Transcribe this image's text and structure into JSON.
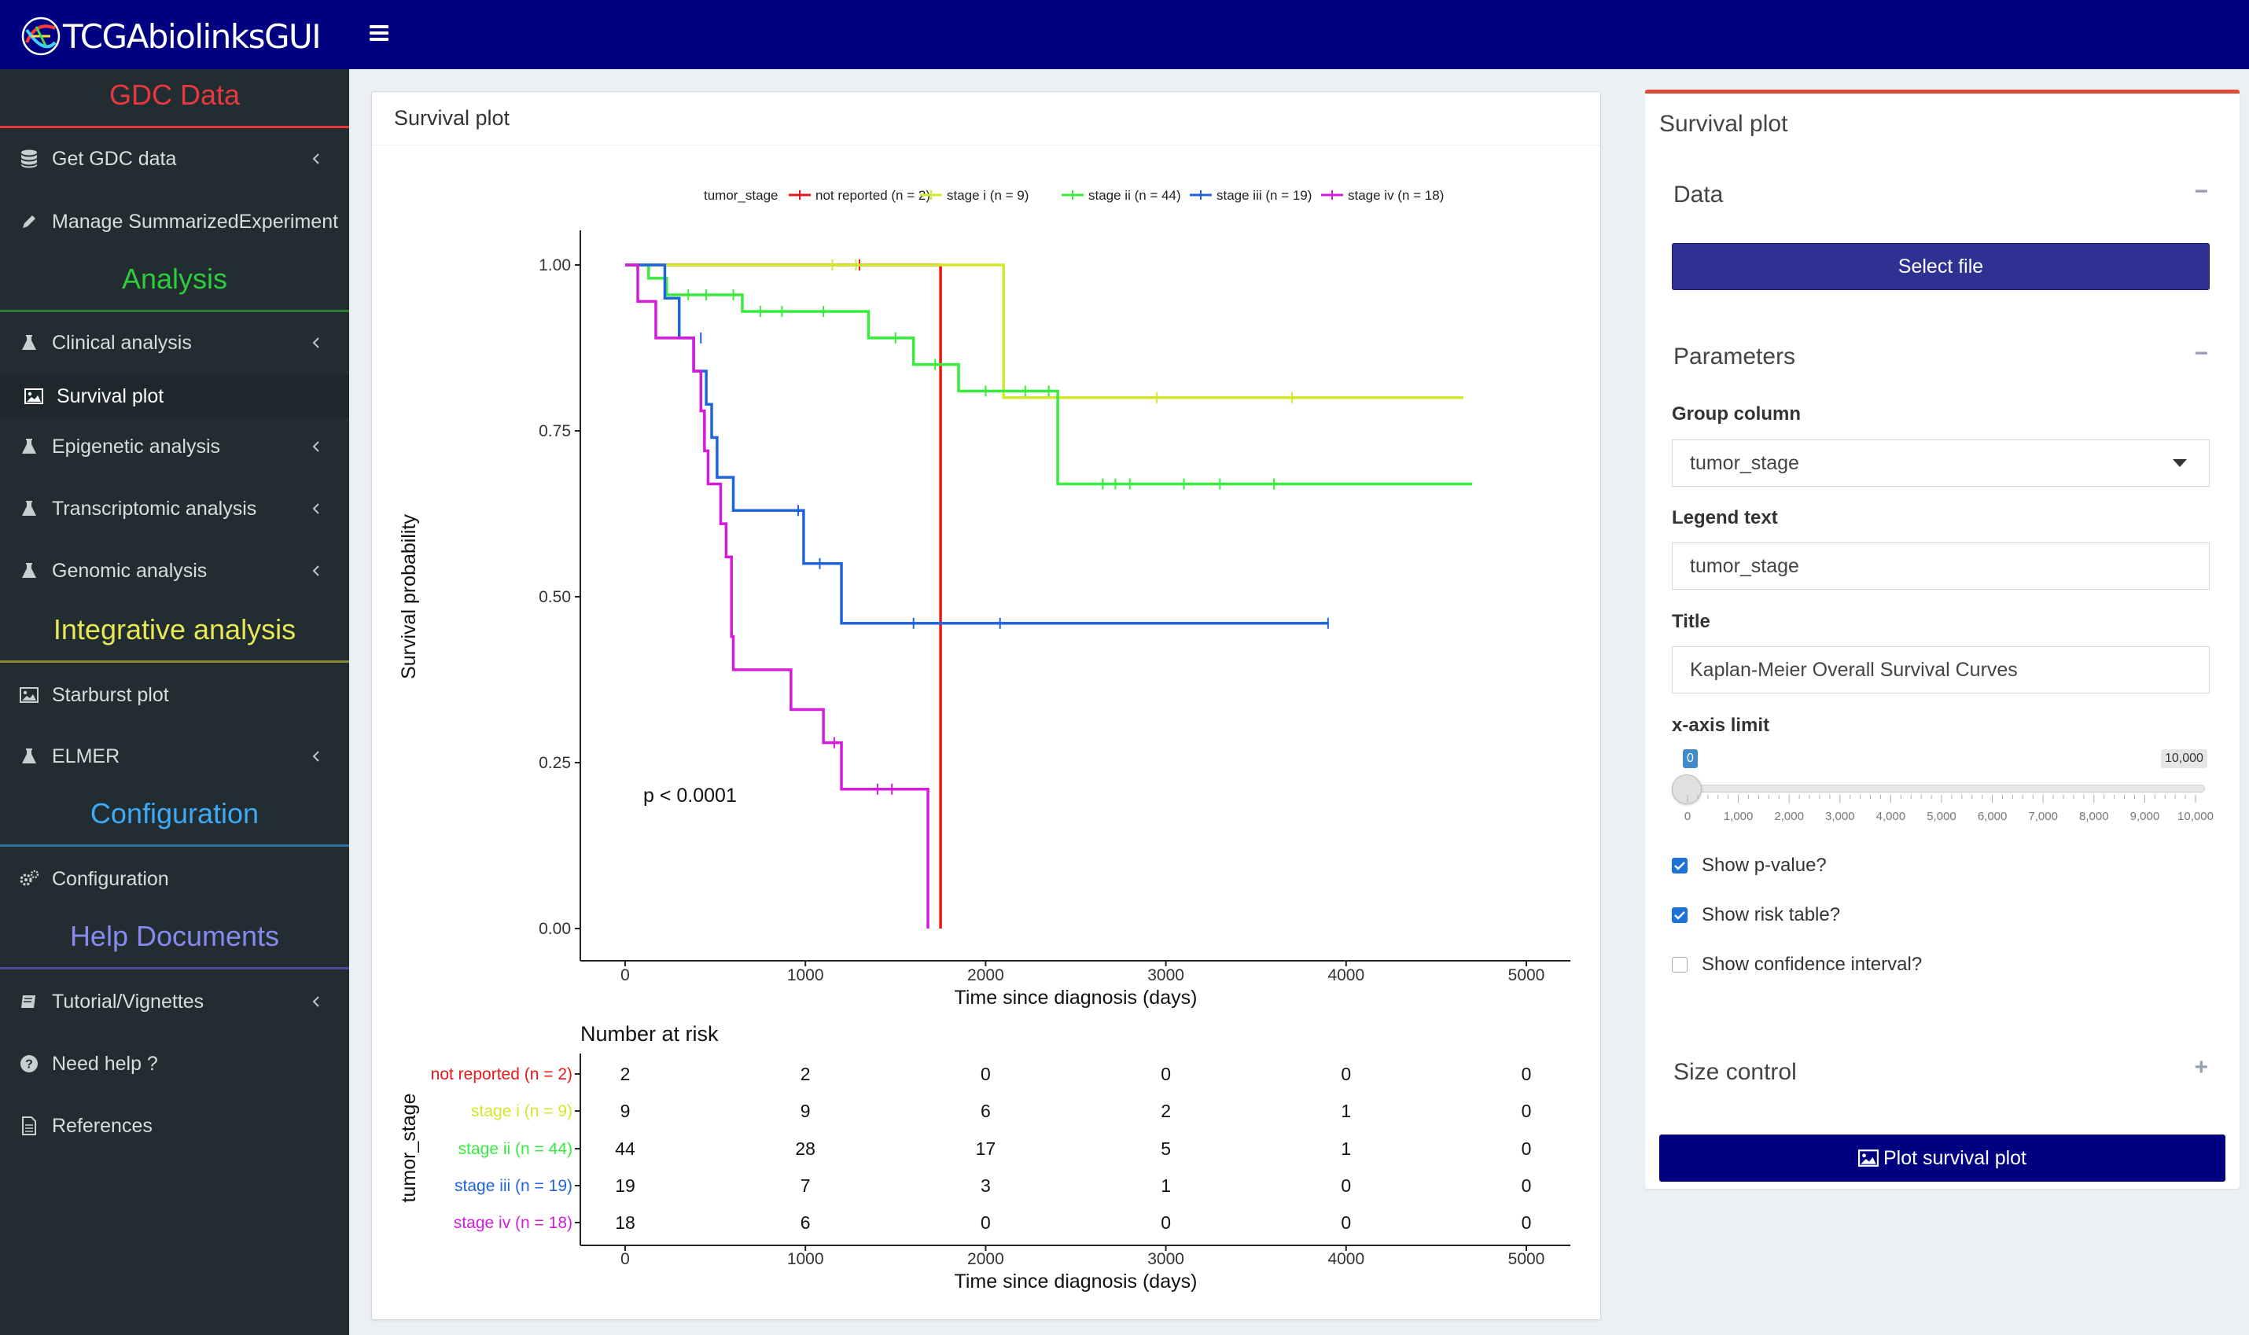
{
  "app": {
    "title": "TCGAbiolinksGUI"
  },
  "sidebar": {
    "sections": [
      {
        "title": "GDC Data",
        "color": "#e8383d"
      },
      {
        "title": "Analysis",
        "color": "#2fcc3a"
      },
      {
        "title": "Integrative analysis",
        "color": "#e8e855"
      },
      {
        "title": "Configuration",
        "color": "#3fa9f5"
      },
      {
        "title": "Help Documents",
        "color": "#8888ee"
      }
    ],
    "items": [
      {
        "label": "Get GDC data",
        "icon": "database-icon"
      },
      {
        "label": "Manage SummarizedExperiment",
        "icon": "pencil-icon"
      },
      {
        "label": "Clinical analysis",
        "icon": "flask-icon"
      },
      {
        "label": "Survival plot",
        "icon": "image-icon"
      },
      {
        "label": "Epigenetic analysis",
        "icon": "flask-icon"
      },
      {
        "label": "Transcriptomic analysis",
        "icon": "flask-icon"
      },
      {
        "label": "Genomic analysis",
        "icon": "flask-icon"
      },
      {
        "label": "Starburst plot",
        "icon": "image-icon"
      },
      {
        "label": "ELMER",
        "icon": "flask-icon"
      },
      {
        "label": "Configuration",
        "icon": "gears-icon"
      },
      {
        "label": "Tutorial/Vignettes",
        "icon": "book-icon"
      },
      {
        "label": "Need help ?",
        "icon": "question-circle-icon"
      },
      {
        "label": "References",
        "icon": "file-text-icon"
      }
    ]
  },
  "main": {
    "title": "Survival plot"
  },
  "chart_data": {
    "type": "line",
    "subtype": "kaplan-meier",
    "legend": {
      "title": "tumor_stage",
      "position": "top"
    },
    "xlabel": "Time since diagnosis (days)",
    "ylabel": "Survival probability",
    "xlim": [
      0,
      5000
    ],
    "ylim": [
      0,
      1
    ],
    "x_ticks": [
      0,
      1000,
      2000,
      3000,
      4000,
      5000
    ],
    "y_ticks": [
      "0.00",
      "0.25",
      "0.50",
      "0.75",
      "1.00"
    ],
    "pvalue_text": "p < 0.0001",
    "series": [
      {
        "name": "not reported (n = 2)",
        "color": "#e61919",
        "steps": [
          [
            0,
            1.0
          ],
          [
            1750,
            0.0
          ]
        ],
        "censors": [
          [
            1300,
            1.0
          ]
        ]
      },
      {
        "name": "stage i (n = 9)",
        "color": "#d3e82b",
        "steps": [
          [
            0,
            1.0
          ],
          [
            2100,
            0.8
          ],
          [
            4650,
            0.8
          ]
        ],
        "censors": [
          [
            1150,
            1.0
          ],
          [
            1280,
            1.0
          ],
          [
            2950,
            0.8
          ],
          [
            3700,
            0.8
          ]
        ]
      },
      {
        "name": "stage ii (n = 44)",
        "color": "#38ec3d",
        "steps": [
          [
            0,
            1.0
          ],
          [
            130,
            0.98
          ],
          [
            230,
            0.955
          ],
          [
            650,
            0.93
          ],
          [
            1350,
            0.89
          ],
          [
            1600,
            0.85
          ],
          [
            1850,
            0.81
          ],
          [
            2400,
            0.67
          ],
          [
            4700,
            0.67
          ]
        ],
        "censors": [
          [
            350,
            0.955
          ],
          [
            450,
            0.955
          ],
          [
            600,
            0.955
          ],
          [
            750,
            0.93
          ],
          [
            870,
            0.93
          ],
          [
            1100,
            0.93
          ],
          [
            1500,
            0.89
          ],
          [
            1720,
            0.85
          ],
          [
            2000,
            0.81
          ],
          [
            2220,
            0.81
          ],
          [
            2350,
            0.81
          ],
          [
            2650,
            0.67
          ],
          [
            2720,
            0.67
          ],
          [
            2800,
            0.67
          ],
          [
            3100,
            0.67
          ],
          [
            3300,
            0.67
          ],
          [
            3600,
            0.67
          ]
        ]
      },
      {
        "name": "stage iii (n = 19)",
        "color": "#1f63de",
        "steps": [
          [
            0,
            1.0
          ],
          [
            220,
            0.95
          ],
          [
            300,
            0.89
          ],
          [
            380,
            0.84
          ],
          [
            450,
            0.79
          ],
          [
            480,
            0.74
          ],
          [
            510,
            0.68
          ],
          [
            600,
            0.63
          ],
          [
            990,
            0.55
          ],
          [
            1200,
            0.46
          ],
          [
            3900,
            0.46
          ]
        ],
        "censors": [
          [
            420,
            0.89
          ],
          [
            960,
            0.63
          ],
          [
            1080,
            0.55
          ],
          [
            1600,
            0.46
          ],
          [
            2080,
            0.46
          ],
          [
            3900,
            0.46
          ]
        ]
      },
      {
        "name": "stage iv (n = 18)",
        "color": "#d41bd9",
        "steps": [
          [
            0,
            1.0
          ],
          [
            70,
            0.945
          ],
          [
            170,
            0.89
          ],
          [
            380,
            0.84
          ],
          [
            420,
            0.78
          ],
          [
            440,
            0.72
          ],
          [
            460,
            0.67
          ],
          [
            530,
            0.61
          ],
          [
            560,
            0.56
          ],
          [
            590,
            0.44
          ],
          [
            600,
            0.39
          ],
          [
            920,
            0.33
          ],
          [
            1100,
            0.28
          ],
          [
            1200,
            0.21
          ],
          [
            1680,
            0.0
          ]
        ],
        "censors": [
          [
            1160,
            0.28
          ],
          [
            1400,
            0.21
          ],
          [
            1480,
            0.21
          ]
        ]
      }
    ],
    "risk_table": {
      "title": "Number at risk",
      "ylabel": "tumor_stage",
      "xlabel": "Time since diagnosis (days)",
      "times": [
        0,
        1000,
        2000,
        3000,
        4000,
        5000
      ],
      "rows": [
        {
          "label": "not reported (n = 2)",
          "color": "#e61919",
          "values": [
            2,
            2,
            0,
            0,
            0,
            0
          ]
        },
        {
          "label": "stage i (n = 9)",
          "color": "#d3e82b",
          "values": [
            9,
            9,
            6,
            2,
            1,
            0
          ]
        },
        {
          "label": "stage ii (n = 44)",
          "color": "#38ec3d",
          "values": [
            44,
            28,
            17,
            5,
            1,
            0
          ]
        },
        {
          "label": "stage iii (n = 19)",
          "color": "#1f63de",
          "values": [
            19,
            7,
            3,
            1,
            0,
            0
          ]
        },
        {
          "label": "stage iv (n = 18)",
          "color": "#d41bd9",
          "values": [
            18,
            6,
            0,
            0,
            0,
            0
          ]
        }
      ]
    }
  },
  "panel": {
    "title": "Survival plot",
    "data_section": "Data",
    "select_file_label": "Select file",
    "parameters_section": "Parameters",
    "group_column_label": "Group column",
    "group_column_value": "tumor_stage",
    "legend_text_label": "Legend text",
    "legend_text_value": "tumor_stage",
    "title_label": "Title",
    "title_value": "Kaplan-Meier Overall Survival Curves",
    "xaxis_limit_label": "x-axis limit",
    "slider": {
      "min": 0,
      "max": 10000,
      "value_label": "0",
      "max_label": "10,000",
      "ticks": [
        "0",
        "1,000",
        "2,000",
        "3,000",
        "4,000",
        "5,000",
        "6,000",
        "7,000",
        "8,000",
        "9,000",
        "10,000"
      ]
    },
    "checkboxes": [
      {
        "label": "Show p-value?",
        "checked": true
      },
      {
        "label": "Show risk table?",
        "checked": true
      },
      {
        "label": "Show confidence interval?",
        "checked": false
      }
    ],
    "size_control_section": "Size control",
    "plot_button_label": "Plot survival plot",
    "collapse_symbol": "−",
    "expand_symbol": "+"
  }
}
